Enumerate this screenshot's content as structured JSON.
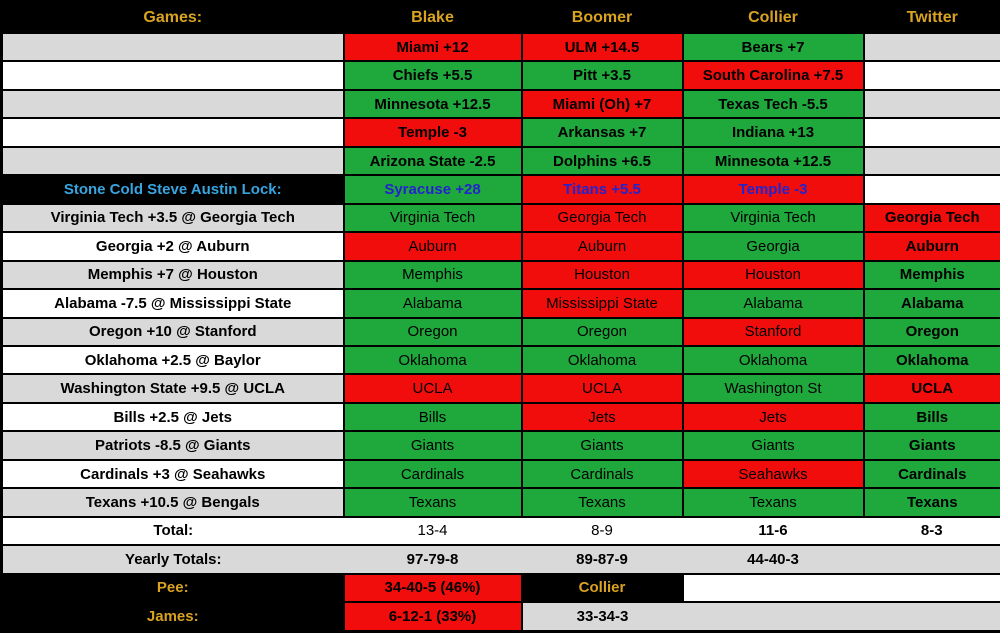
{
  "colors": {
    "green": "#1FA83C",
    "red": "#F20D0D",
    "gold": "#D9A321",
    "gray": "#D9D9D9",
    "lock_label": "#38A5E0",
    "lock_pick": "#2424CC"
  },
  "header": {
    "games": "Games:",
    "blake": "Blake",
    "boomer": "Boomer",
    "collier": "Collier",
    "twitter": "Twitter"
  },
  "rows": [
    {
      "type": "spread",
      "shade": "gray",
      "game": "",
      "cells": [
        {
          "text": "Miami +12",
          "result": "loss"
        },
        {
          "text": "ULM +14.5",
          "result": "loss"
        },
        {
          "text": "Bears +7",
          "result": "win"
        },
        {
          "text": "",
          "result": "none"
        }
      ]
    },
    {
      "type": "spread",
      "shade": "white",
      "game": "",
      "cells": [
        {
          "text": "Chiefs +5.5",
          "result": "win"
        },
        {
          "text": "Pitt +3.5",
          "result": "win"
        },
        {
          "text": "South Carolina +7.5",
          "result": "loss"
        },
        {
          "text": "",
          "result": "none"
        }
      ]
    },
    {
      "type": "spread",
      "shade": "gray",
      "game": "",
      "cells": [
        {
          "text": "Minnesota +12.5",
          "result": "win"
        },
        {
          "text": "Miami (Oh) +7",
          "result": "loss"
        },
        {
          "text": "Texas Tech -5.5",
          "result": "win"
        },
        {
          "text": "",
          "result": "none"
        }
      ]
    },
    {
      "type": "spread",
      "shade": "white",
      "game": "",
      "cells": [
        {
          "text": "Temple -3",
          "result": "loss"
        },
        {
          "text": "Arkansas +7",
          "result": "win"
        },
        {
          "text": "Indiana +13",
          "result": "win"
        },
        {
          "text": "",
          "result": "none"
        }
      ]
    },
    {
      "type": "spread",
      "shade": "gray",
      "game": "",
      "cells": [
        {
          "text": "Arizona State -2.5",
          "result": "win"
        },
        {
          "text": "Dolphins +6.5",
          "result": "win"
        },
        {
          "text": "Minnesota +12.5",
          "result": "win"
        },
        {
          "text": "",
          "result": "none"
        }
      ]
    },
    {
      "type": "lock",
      "shade": "white",
      "game": "Stone Cold Steve Austin Lock:",
      "cells": [
        {
          "text": "Syracuse +28",
          "result": "win"
        },
        {
          "text": "Titans +5.5",
          "result": "loss"
        },
        {
          "text": "Temple -3",
          "result": "loss"
        },
        {
          "text": "",
          "result": "none"
        }
      ]
    },
    {
      "type": "game",
      "shade": "gray",
      "game": "Virginia Tech +3.5 @ Georgia Tech",
      "cells": [
        {
          "text": "Virginia Tech",
          "result": "win"
        },
        {
          "text": "Georgia Tech",
          "result": "loss"
        },
        {
          "text": "Virginia Tech",
          "result": "win"
        },
        {
          "text": "Georgia Tech",
          "result": "loss"
        }
      ]
    },
    {
      "type": "game",
      "shade": "white",
      "game": "Georgia +2 @ Auburn",
      "cells": [
        {
          "text": "Auburn",
          "result": "loss"
        },
        {
          "text": "Auburn",
          "result": "loss"
        },
        {
          "text": "Georgia",
          "result": "win"
        },
        {
          "text": "Auburn",
          "result": "loss"
        }
      ]
    },
    {
      "type": "game",
      "shade": "gray",
      "game": "Memphis +7 @ Houston",
      "cells": [
        {
          "text": "Memphis",
          "result": "win"
        },
        {
          "text": "Houston",
          "result": "loss"
        },
        {
          "text": "Houston",
          "result": "loss"
        },
        {
          "text": "Memphis",
          "result": "win"
        }
      ]
    },
    {
      "type": "game",
      "shade": "white",
      "game": "Alabama -7.5 @ Mississippi State",
      "cells": [
        {
          "text": "Alabama",
          "result": "win"
        },
        {
          "text": "Mississippi State",
          "result": "loss"
        },
        {
          "text": "Alabama",
          "result": "win"
        },
        {
          "text": "Alabama",
          "result": "win"
        }
      ]
    },
    {
      "type": "game",
      "shade": "gray",
      "game": "Oregon +10 @ Stanford",
      "cells": [
        {
          "text": "Oregon",
          "result": "win"
        },
        {
          "text": "Oregon",
          "result": "win"
        },
        {
          "text": "Stanford",
          "result": "loss"
        },
        {
          "text": "Oregon",
          "result": "win"
        }
      ]
    },
    {
      "type": "game",
      "shade": "white",
      "game": "Oklahoma +2.5 @ Baylor",
      "cells": [
        {
          "text": "Oklahoma",
          "result": "win"
        },
        {
          "text": "Oklahoma",
          "result": "win"
        },
        {
          "text": "Oklahoma",
          "result": "win"
        },
        {
          "text": "Oklahoma",
          "result": "win"
        }
      ]
    },
    {
      "type": "game",
      "shade": "gray",
      "game": "Washington State +9.5 @ UCLA",
      "cells": [
        {
          "text": "UCLA",
          "result": "loss"
        },
        {
          "text": "UCLA",
          "result": "loss"
        },
        {
          "text": "Washington St",
          "result": "win"
        },
        {
          "text": "UCLA",
          "result": "loss"
        }
      ]
    },
    {
      "type": "game",
      "shade": "white",
      "game": "Bills +2.5 @ Jets",
      "cells": [
        {
          "text": "Bills",
          "result": "win"
        },
        {
          "text": "Jets",
          "result": "loss"
        },
        {
          "text": "Jets",
          "result": "loss"
        },
        {
          "text": "Bills",
          "result": "win"
        }
      ]
    },
    {
      "type": "game",
      "shade": "gray",
      "game": "Patriots -8.5 @ Giants",
      "cells": [
        {
          "text": "Giants",
          "result": "win"
        },
        {
          "text": "Giants",
          "result": "win"
        },
        {
          "text": "Giants",
          "result": "win"
        },
        {
          "text": "Giants",
          "result": "win"
        }
      ]
    },
    {
      "type": "game",
      "shade": "white",
      "game": "Cardinals +3 @ Seahawks",
      "cells": [
        {
          "text": "Cardinals",
          "result": "win"
        },
        {
          "text": "Cardinals",
          "result": "win"
        },
        {
          "text": "Seahawks",
          "result": "loss"
        },
        {
          "text": "Cardinals",
          "result": "win"
        }
      ]
    },
    {
      "type": "game",
      "shade": "gray",
      "game": "Texans +10.5 @ Bengals",
      "cells": [
        {
          "text": "Texans",
          "result": "win"
        },
        {
          "text": "Texans",
          "result": "win"
        },
        {
          "text": "Texans",
          "result": "win"
        },
        {
          "text": "Texans",
          "result": "win"
        }
      ]
    },
    {
      "type": "total",
      "shade": "white",
      "game": "Total:",
      "cells": [
        {
          "text": "13-4",
          "bold": false
        },
        {
          "text": "8-9",
          "bold": false
        },
        {
          "text": "11-6",
          "bold": true
        },
        {
          "text": "8-3",
          "bold": true
        }
      ]
    },
    {
      "type": "yearly",
      "shade": "gray",
      "game": "Yearly Totals:",
      "cells": [
        {
          "text": "97-79-8",
          "bold": true
        },
        {
          "text": "89-87-9",
          "bold": true
        },
        {
          "text": "44-40-3",
          "bold": true
        },
        {
          "text": "",
          "bold": false
        }
      ]
    },
    {
      "type": "pee",
      "shade": "black",
      "game": "Pee:",
      "cells": [
        {
          "text": "34-40-5 (46%)",
          "result": "loss"
        },
        {
          "text": "Collier",
          "result": "none"
        },
        {
          "text": "",
          "result": "none",
          "span": 2
        }
      ]
    },
    {
      "type": "james",
      "shade": "black",
      "game": "James:",
      "cells": [
        {
          "text": "6-12-1 (33%)",
          "result": "loss"
        },
        {
          "text": "33-34-3",
          "result": "none"
        },
        {
          "text": "",
          "result": "none",
          "span": 2
        }
      ]
    }
  ]
}
